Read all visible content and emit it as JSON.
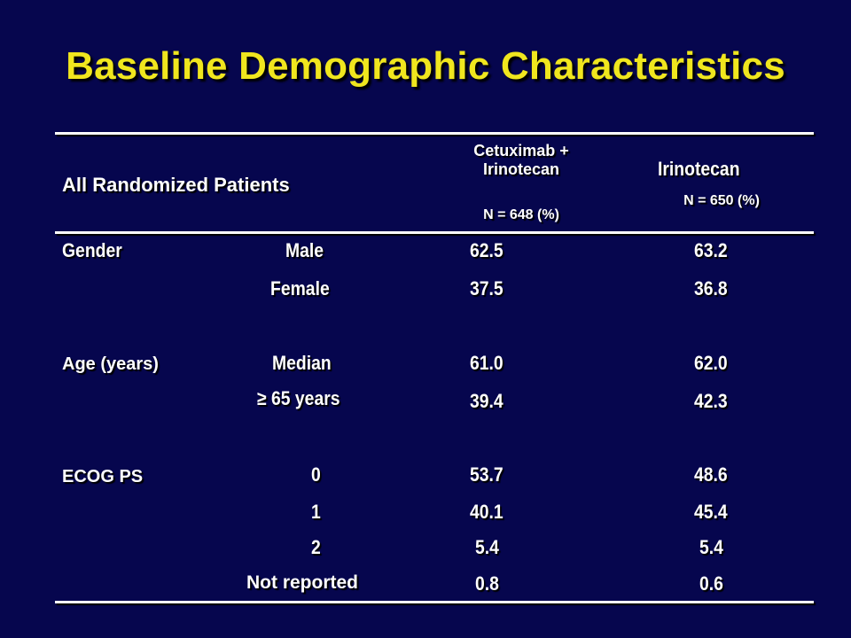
{
  "title": "Baseline Demographic Characteristics",
  "header": {
    "population": "All Randomized Patients",
    "arm1_line1": "Cetuximab +",
    "arm1_line2": "Irinotecan",
    "arm1_n": "N = 648 (%)",
    "arm2_name": "Irinotecan",
    "arm2_n": "N = 650 (%)"
  },
  "groups": {
    "gender": "Gender",
    "age": "Age (years)",
    "ecog": "ECOG PS"
  },
  "rows": [
    {
      "sub": "Male",
      "arm1": "62.5",
      "arm2": "63.2"
    },
    {
      "sub": "Female",
      "arm1": "37.5",
      "arm2": "36.8"
    },
    {
      "sub": "Median",
      "arm1": "61.0",
      "arm2": "62.0"
    },
    {
      "sub": "≥ 65 years",
      "arm1": "39.4",
      "arm2": "42.3"
    },
    {
      "sub": "0",
      "arm1": "53.7",
      "arm2": "48.6"
    },
    {
      "sub": "1",
      "arm1": "40.1",
      "arm2": "45.4"
    },
    {
      "sub": "2",
      "arm1": "5.4",
      "arm2": "5.4"
    },
    {
      "sub": "Not reported",
      "arm1": "0.8",
      "arm2": "0.6"
    }
  ]
}
